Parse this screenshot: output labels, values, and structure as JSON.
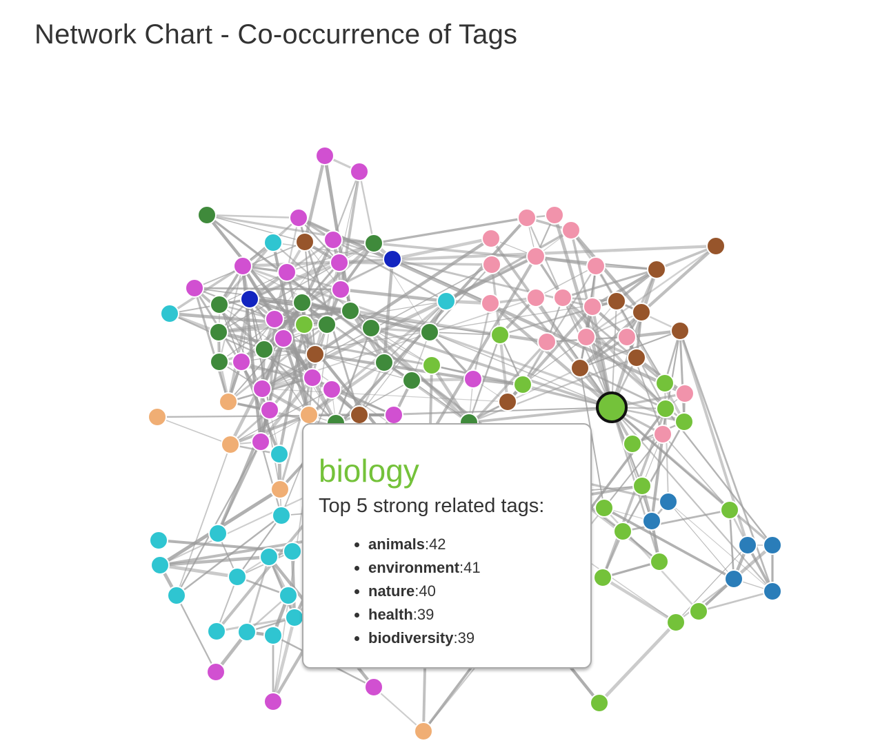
{
  "page": {
    "title": "Network Chart - Co-occurrence of Tags"
  },
  "tooltip": {
    "tag": "biology",
    "heading": "Top 5 strong related tags:",
    "related": [
      {
        "name": "animals",
        "count": "42"
      },
      {
        "name": "environment",
        "count": "41"
      },
      {
        "name": "nature",
        "count": "40"
      },
      {
        "name": "health",
        "count": "39"
      },
      {
        "name": "biodiversity",
        "count": "39"
      }
    ]
  },
  "colors": {
    "magenta": "#d150d1",
    "dark_green": "#3f8a3b",
    "cyan": "#2fc5d1",
    "brown": "#97552b",
    "pink": "#f193ab",
    "light_green": "#74c23a",
    "peach": "#f0ae74",
    "blue": "#2a7db9",
    "navy": "#1224c0",
    "link": "#9a9a9a",
    "highlight_stroke": "#111111"
  }
}
